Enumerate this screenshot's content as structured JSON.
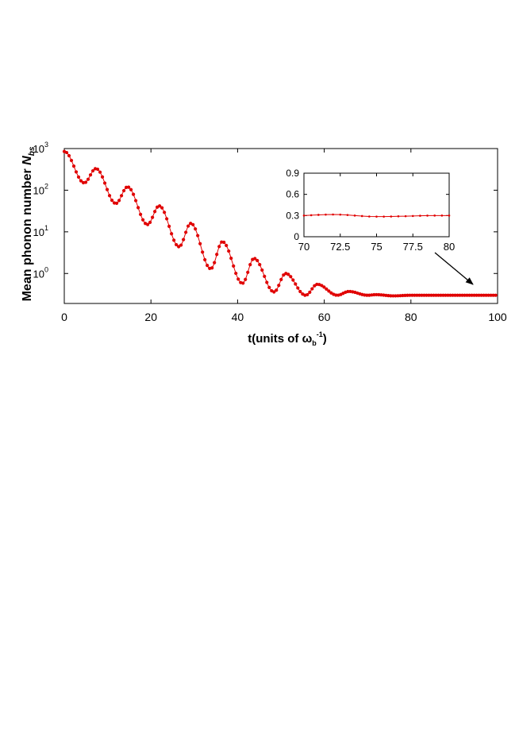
{
  "chart_data": [
    {
      "type": "scatter",
      "panel": "main",
      "ylabel_main": "Mean phonon number ",
      "ylabel_symbol": "N",
      "ylabel_subscript": "bs",
      "xlabel_pre": "t(units of ",
      "xlabel_omega": "ω",
      "xlabel_sub": "b",
      "xlabel_sup": "-1",
      "xlabel_post": ")",
      "x_range": [
        0,
        100
      ],
      "y_scale": "log",
      "y_range_exponent": [
        -0.72,
        3.0
      ],
      "x_ticks": [
        "0",
        "20",
        "40",
        "60",
        "80",
        "100"
      ],
      "y_ticks": [
        {
          "base": "10",
          "exp": "0",
          "value": 1
        },
        {
          "base": "10",
          "exp": "1",
          "value": 10
        },
        {
          "base": "10",
          "exp": "2",
          "value": 100
        },
        {
          "base": "10",
          "exp": "3",
          "value": 1000
        }
      ],
      "series_color": "#e00000",
      "series": {
        "t": [
          0,
          4.6,
          7.3,
          11.9,
          14.6,
          19.2,
          21.9,
          26.5,
          29.2,
          33.8,
          36.5,
          41.1,
          43.8,
          48.4,
          51.1,
          55.7,
          58.4,
          63.0,
          65.7,
          70,
          72,
          76,
          80,
          100
        ],
        "N": [
          850,
          150,
          330,
          48,
          120,
          15,
          42,
          4.4,
          16,
          1.3,
          5.8,
          0.58,
          2.3,
          0.36,
          1.0,
          0.3,
          0.55,
          0.3,
          0.37,
          0.3,
          0.31,
          0.29,
          0.3,
          0.3
        ]
      },
      "annotation": "arrow from inset to the curve near t ≈ 94"
    },
    {
      "type": "line",
      "panel": "inset",
      "x_range": [
        70,
        80
      ],
      "y_range": [
        0,
        0.9
      ],
      "x_ticks": [
        "70",
        "72.5",
        "75",
        "77.5",
        "80"
      ],
      "y_ticks": [
        "0",
        "0.3",
        "0.6",
        "0.9"
      ],
      "series_color": "#e00000",
      "series": {
        "t": [
          70,
          70.5,
          71,
          71.5,
          72,
          72.5,
          73,
          73.5,
          74,
          74.5,
          75,
          75.5,
          76,
          76.5,
          77,
          77.5,
          78,
          78.5,
          79,
          79.5,
          80
        ],
        "N": [
          0.3,
          0.305,
          0.31,
          0.313,
          0.315,
          0.313,
          0.308,
          0.3,
          0.293,
          0.287,
          0.285,
          0.285,
          0.287,
          0.289,
          0.291,
          0.294,
          0.297,
          0.299,
          0.3,
          0.3,
          0.3
        ]
      }
    }
  ]
}
